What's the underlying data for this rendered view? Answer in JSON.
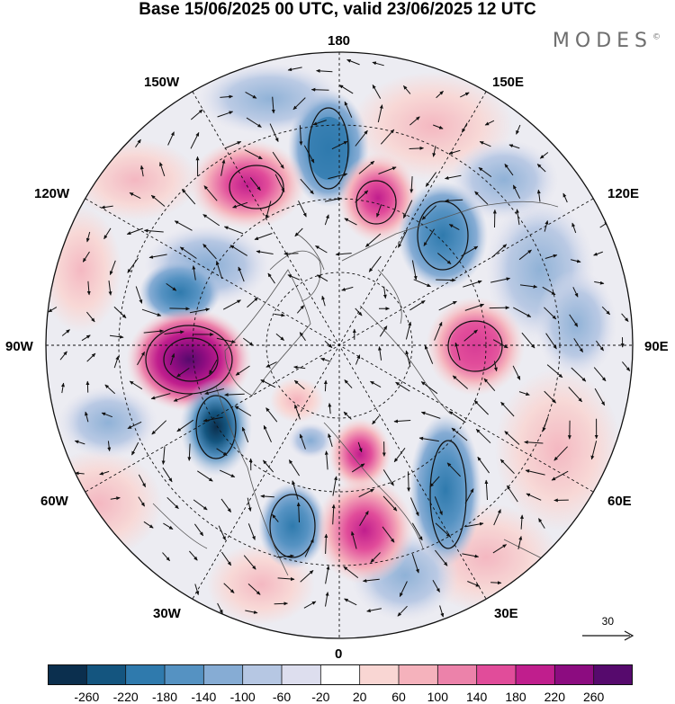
{
  "title": "Base 15/06/2025 00 UTC, valid 23/06/2025 12 UTC",
  "brand": "MODES",
  "brand_mark": "©",
  "longitude_labels": {
    "top": "180",
    "bottom": "0",
    "left": "90W",
    "right": "90E",
    "upper_left": "150W",
    "upper_right": "150E",
    "mid_upper_left": "120W",
    "mid_upper_right": "120E",
    "mid_lower_left": "60W",
    "mid_lower_right": "60E",
    "lower_left": "30W",
    "lower_right": "30E"
  },
  "vector_reference": {
    "value": "30"
  },
  "colorbar": {
    "tick_labels": [
      "-260",
      "-220",
      "-180",
      "-140",
      "-100",
      "-60",
      "-20",
      "20",
      "60",
      "100",
      "140",
      "180",
      "220",
      "260"
    ],
    "colors": [
      "#0b2f4e",
      "#14557f",
      "#2f7aad",
      "#5592c2",
      "#86acd4",
      "#b6c7e3",
      "#dddeee",
      "#ffffff",
      "#f9d6d3",
      "#f5b2bc",
      "#ec82aa",
      "#e14c9a",
      "#c01e8d",
      "#8c0c80",
      "#560a6d"
    ]
  },
  "anomalies": [
    {
      "lon": 175,
      "lat": 60,
      "value": -180,
      "sign": "neg"
    },
    {
      "lon": 150,
      "lat": 60,
      "value": 160,
      "sign": "pos"
    },
    {
      "lon": 130,
      "lat": 60,
      "value": -200,
      "sign": "neg"
    },
    {
      "lon": -150,
      "lat": 58,
      "value": 150,
      "sign": "pos"
    },
    {
      "lon": -130,
      "lat": 50,
      "value": 60,
      "sign": "pos"
    },
    {
      "lon": -120,
      "lat": 48,
      "value": -120,
      "sign": "neg"
    },
    {
      "lon": -105,
      "lat": 47,
      "value": -150,
      "sign": "neg"
    },
    {
      "lon": -85,
      "lat": 48,
      "value": 260,
      "sign": "pos"
    },
    {
      "lon": -70,
      "lat": 45,
      "value": -240,
      "sign": "neg"
    },
    {
      "lon": -25,
      "lat": 48,
      "value": -200,
      "sign": "neg"
    },
    {
      "lon": 0,
      "lat": 62,
      "value": 180,
      "sign": "pos"
    },
    {
      "lon": 8,
      "lat": 52,
      "value": 150,
      "sign": "pos"
    },
    {
      "lon": 30,
      "lat": 55,
      "value": -180,
      "sign": "neg"
    },
    {
      "lon": 60,
      "lat": 40,
      "value": 100,
      "sign": "pos"
    },
    {
      "lon": 90,
      "lat": 57,
      "value": 200,
      "sign": "pos"
    },
    {
      "lon": 110,
      "lat": 42,
      "value": -100,
      "sign": "neg"
    },
    {
      "lon": -170,
      "lat": 40,
      "value": -60,
      "sign": "neg"
    },
    {
      "lon": 165,
      "lat": 45,
      "value": 60,
      "sign": "pos"
    }
  ]
}
